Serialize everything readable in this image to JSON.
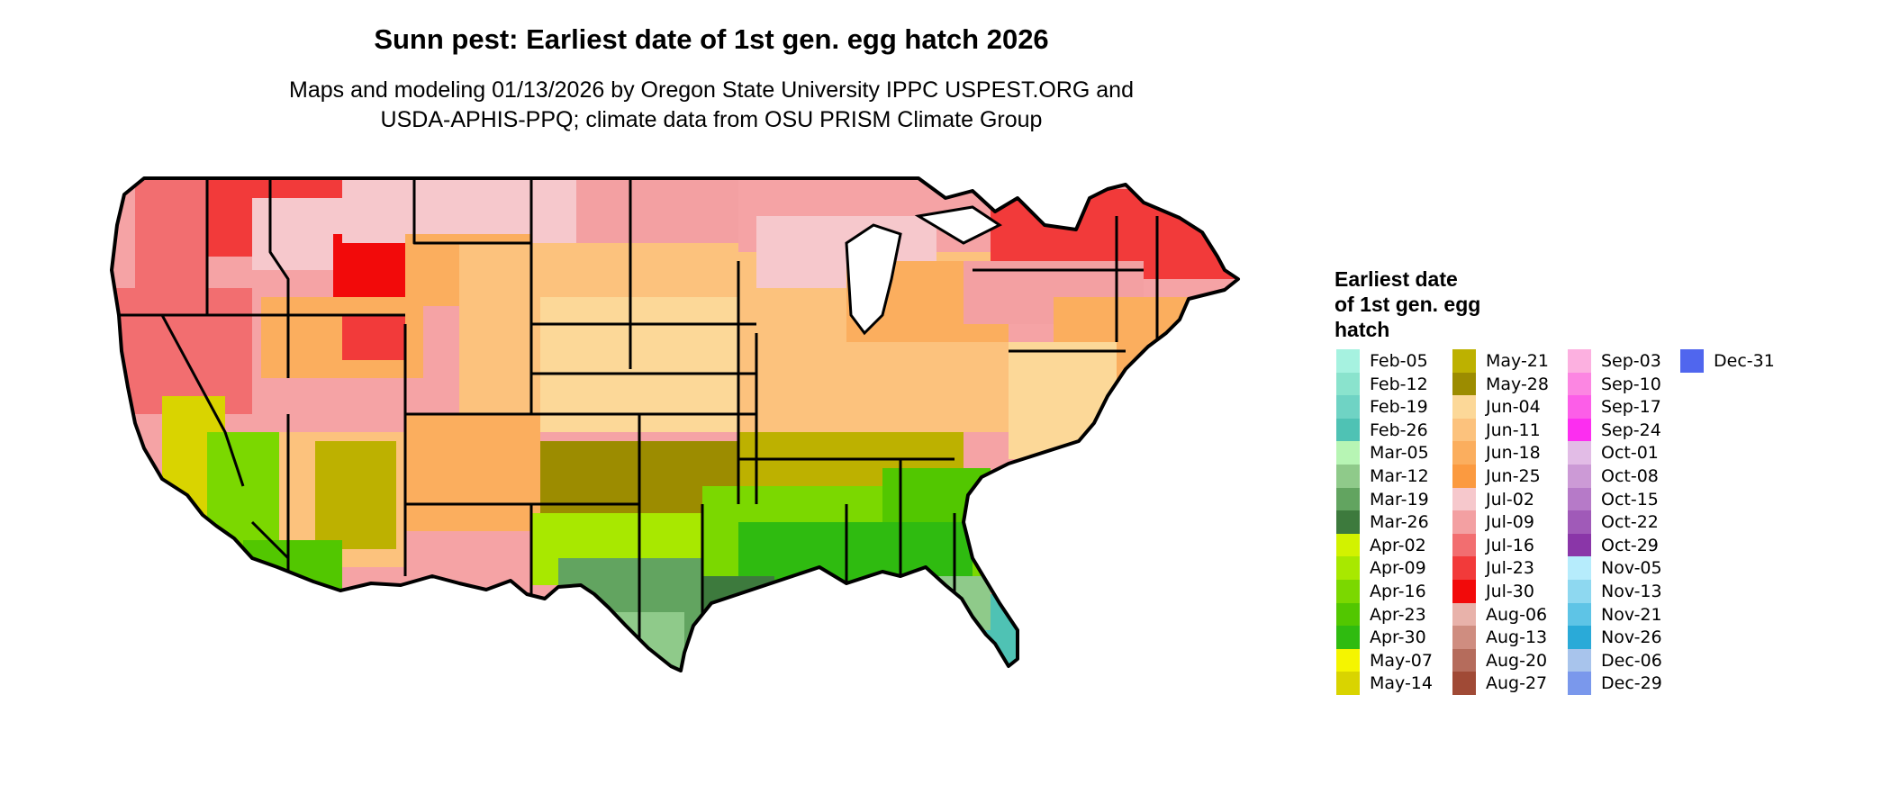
{
  "title": "Sunn pest: Earliest date of 1st gen. egg hatch 2026",
  "subtitle_line1": "Maps and modeling 01/13/2026 by Oregon State University IPPC USPEST.ORG and",
  "subtitle_line2": "USDA-APHIS-PPQ; climate data from OSU PRISM Climate Group",
  "legend": {
    "title_line1": "Earliest date",
    "title_line2": "of 1st gen. egg",
    "title_line3": "hatch",
    "columns": [
      [
        {
          "label": "Feb-05",
          "color": "#a6f2e0"
        },
        {
          "label": "Feb-12",
          "color": "#8ae3cd"
        },
        {
          "label": "Feb-19",
          "color": "#6fd3c4"
        },
        {
          "label": "Feb-26",
          "color": "#4fc2b4"
        },
        {
          "label": "Mar-05",
          "color": "#b7f5b4"
        },
        {
          "label": "Mar-12",
          "color": "#8fca8a"
        },
        {
          "label": "Mar-19",
          "color": "#62a460"
        },
        {
          "label": "Mar-26",
          "color": "#3d7a3d"
        },
        {
          "label": "Apr-02",
          "color": "#d2f200"
        },
        {
          "label": "Apr-09",
          "color": "#a8e800"
        },
        {
          "label": "Apr-16",
          "color": "#7bd800"
        },
        {
          "label": "Apr-23",
          "color": "#52c700"
        },
        {
          "label": "Apr-30",
          "color": "#2fbb10"
        },
        {
          "label": "May-07",
          "color": "#f5f500"
        },
        {
          "label": "May-14",
          "color": "#d9d400"
        }
      ],
      [
        {
          "label": "May-21",
          "color": "#bdb100"
        },
        {
          "label": "May-28",
          "color": "#9c8c00"
        },
        {
          "label": "Jun-04",
          "color": "#fcd898"
        },
        {
          "label": "Jun-11",
          "color": "#fcc27d"
        },
        {
          "label": "Jun-18",
          "color": "#fbae5e"
        },
        {
          "label": "Jun-25",
          "color": "#fb9a40"
        },
        {
          "label": "Jul-02",
          "color": "#f6c8cc"
        },
        {
          "label": "Jul-09",
          "color": "#f3a0a2"
        },
        {
          "label": "Jul-16",
          "color": "#f26e70"
        },
        {
          "label": "Jul-23",
          "color": "#f23a3a"
        },
        {
          "label": "Jul-30",
          "color": "#f20a0a"
        },
        {
          "label": "Aug-06",
          "color": "#e8b2aa"
        },
        {
          "label": "Aug-13",
          "color": "#cf8d80"
        },
        {
          "label": "Aug-20",
          "color": "#b56c5c"
        },
        {
          "label": "Aug-27",
          "color": "#a04a36"
        }
      ],
      [
        {
          "label": "Sep-03",
          "color": "#fcb0e0"
        },
        {
          "label": "Sep-10",
          "color": "#fc86e2"
        },
        {
          "label": "Sep-17",
          "color": "#fc5ee8"
        },
        {
          "label": "Sep-24",
          "color": "#fc2ef0"
        },
        {
          "label": "Oct-01",
          "color": "#e2bce6"
        },
        {
          "label": "Oct-08",
          "color": "#cc9ad6"
        },
        {
          "label": "Oct-15",
          "color": "#b67ac8"
        },
        {
          "label": "Oct-22",
          "color": "#a05ab8"
        },
        {
          "label": "Oct-29",
          "color": "#8a36a8"
        },
        {
          "label": "Nov-05",
          "color": "#b6ecfc"
        },
        {
          "label": "Nov-13",
          "color": "#8ed8f0"
        },
        {
          "label": "Nov-21",
          "color": "#5ec4e6"
        },
        {
          "label": "Nov-26",
          "color": "#2aaad8"
        },
        {
          "label": "Dec-06",
          "color": "#a8c4ec"
        },
        {
          "label": "Dec-29",
          "color": "#7a98ec"
        }
      ],
      [
        {
          "label": "Dec-31",
          "color": "#5066ee"
        }
      ]
    ]
  }
}
